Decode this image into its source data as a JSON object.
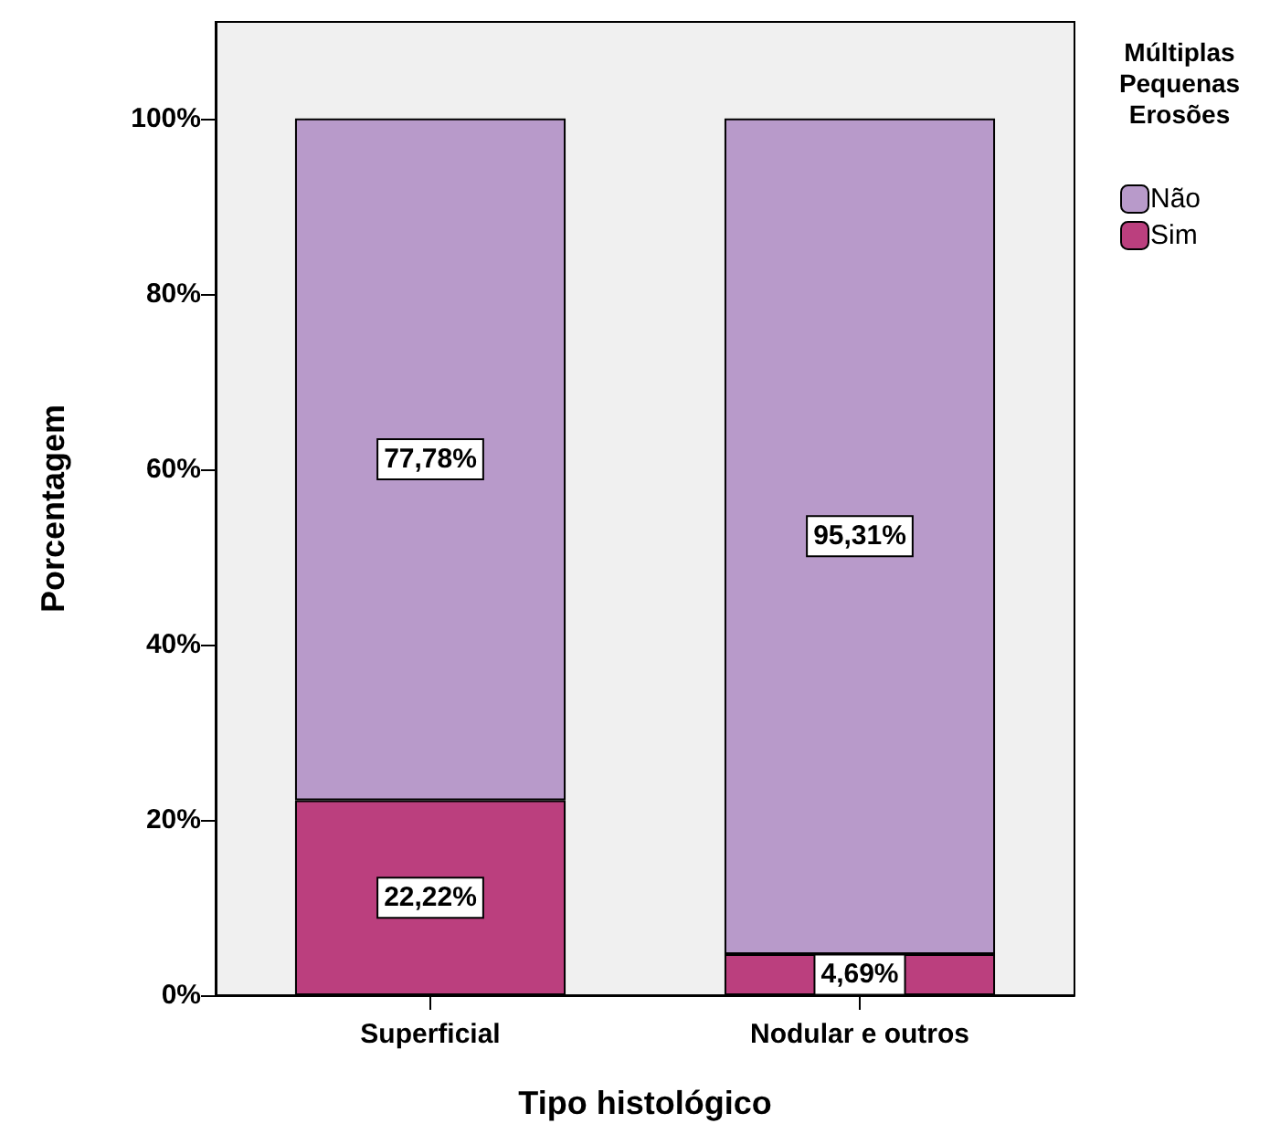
{
  "chart_data": {
    "type": "bar",
    "xlabel": "Tipo histológico",
    "ylabel": "Porcentagem",
    "legend_title": "Múltiplas\nPequenas\nErosões",
    "categories": [
      "Superficial",
      "Nodular e outros"
    ],
    "stacked": true,
    "ylim": [
      0,
      111
    ],
    "yticks": [
      {
        "value": 0,
        "label": "0%"
      },
      {
        "value": 20,
        "label": "20%"
      },
      {
        "value": 40,
        "label": "40%"
      },
      {
        "value": 60,
        "label": "60%"
      },
      {
        "value": 80,
        "label": "80%"
      },
      {
        "value": 100,
        "label": "100%"
      }
    ],
    "series": [
      {
        "name": "Sim",
        "color": "#bb3f7e",
        "values": [
          22.22,
          4.69
        ],
        "value_labels": [
          "22,22%",
          "4,69%"
        ]
      },
      {
        "name": "Não",
        "color": "#b89aca",
        "values": [
          77.78,
          95.31
        ],
        "value_labels": [
          "77,78%",
          "95,31%"
        ]
      }
    ],
    "grid": false,
    "legend": "top right"
  }
}
